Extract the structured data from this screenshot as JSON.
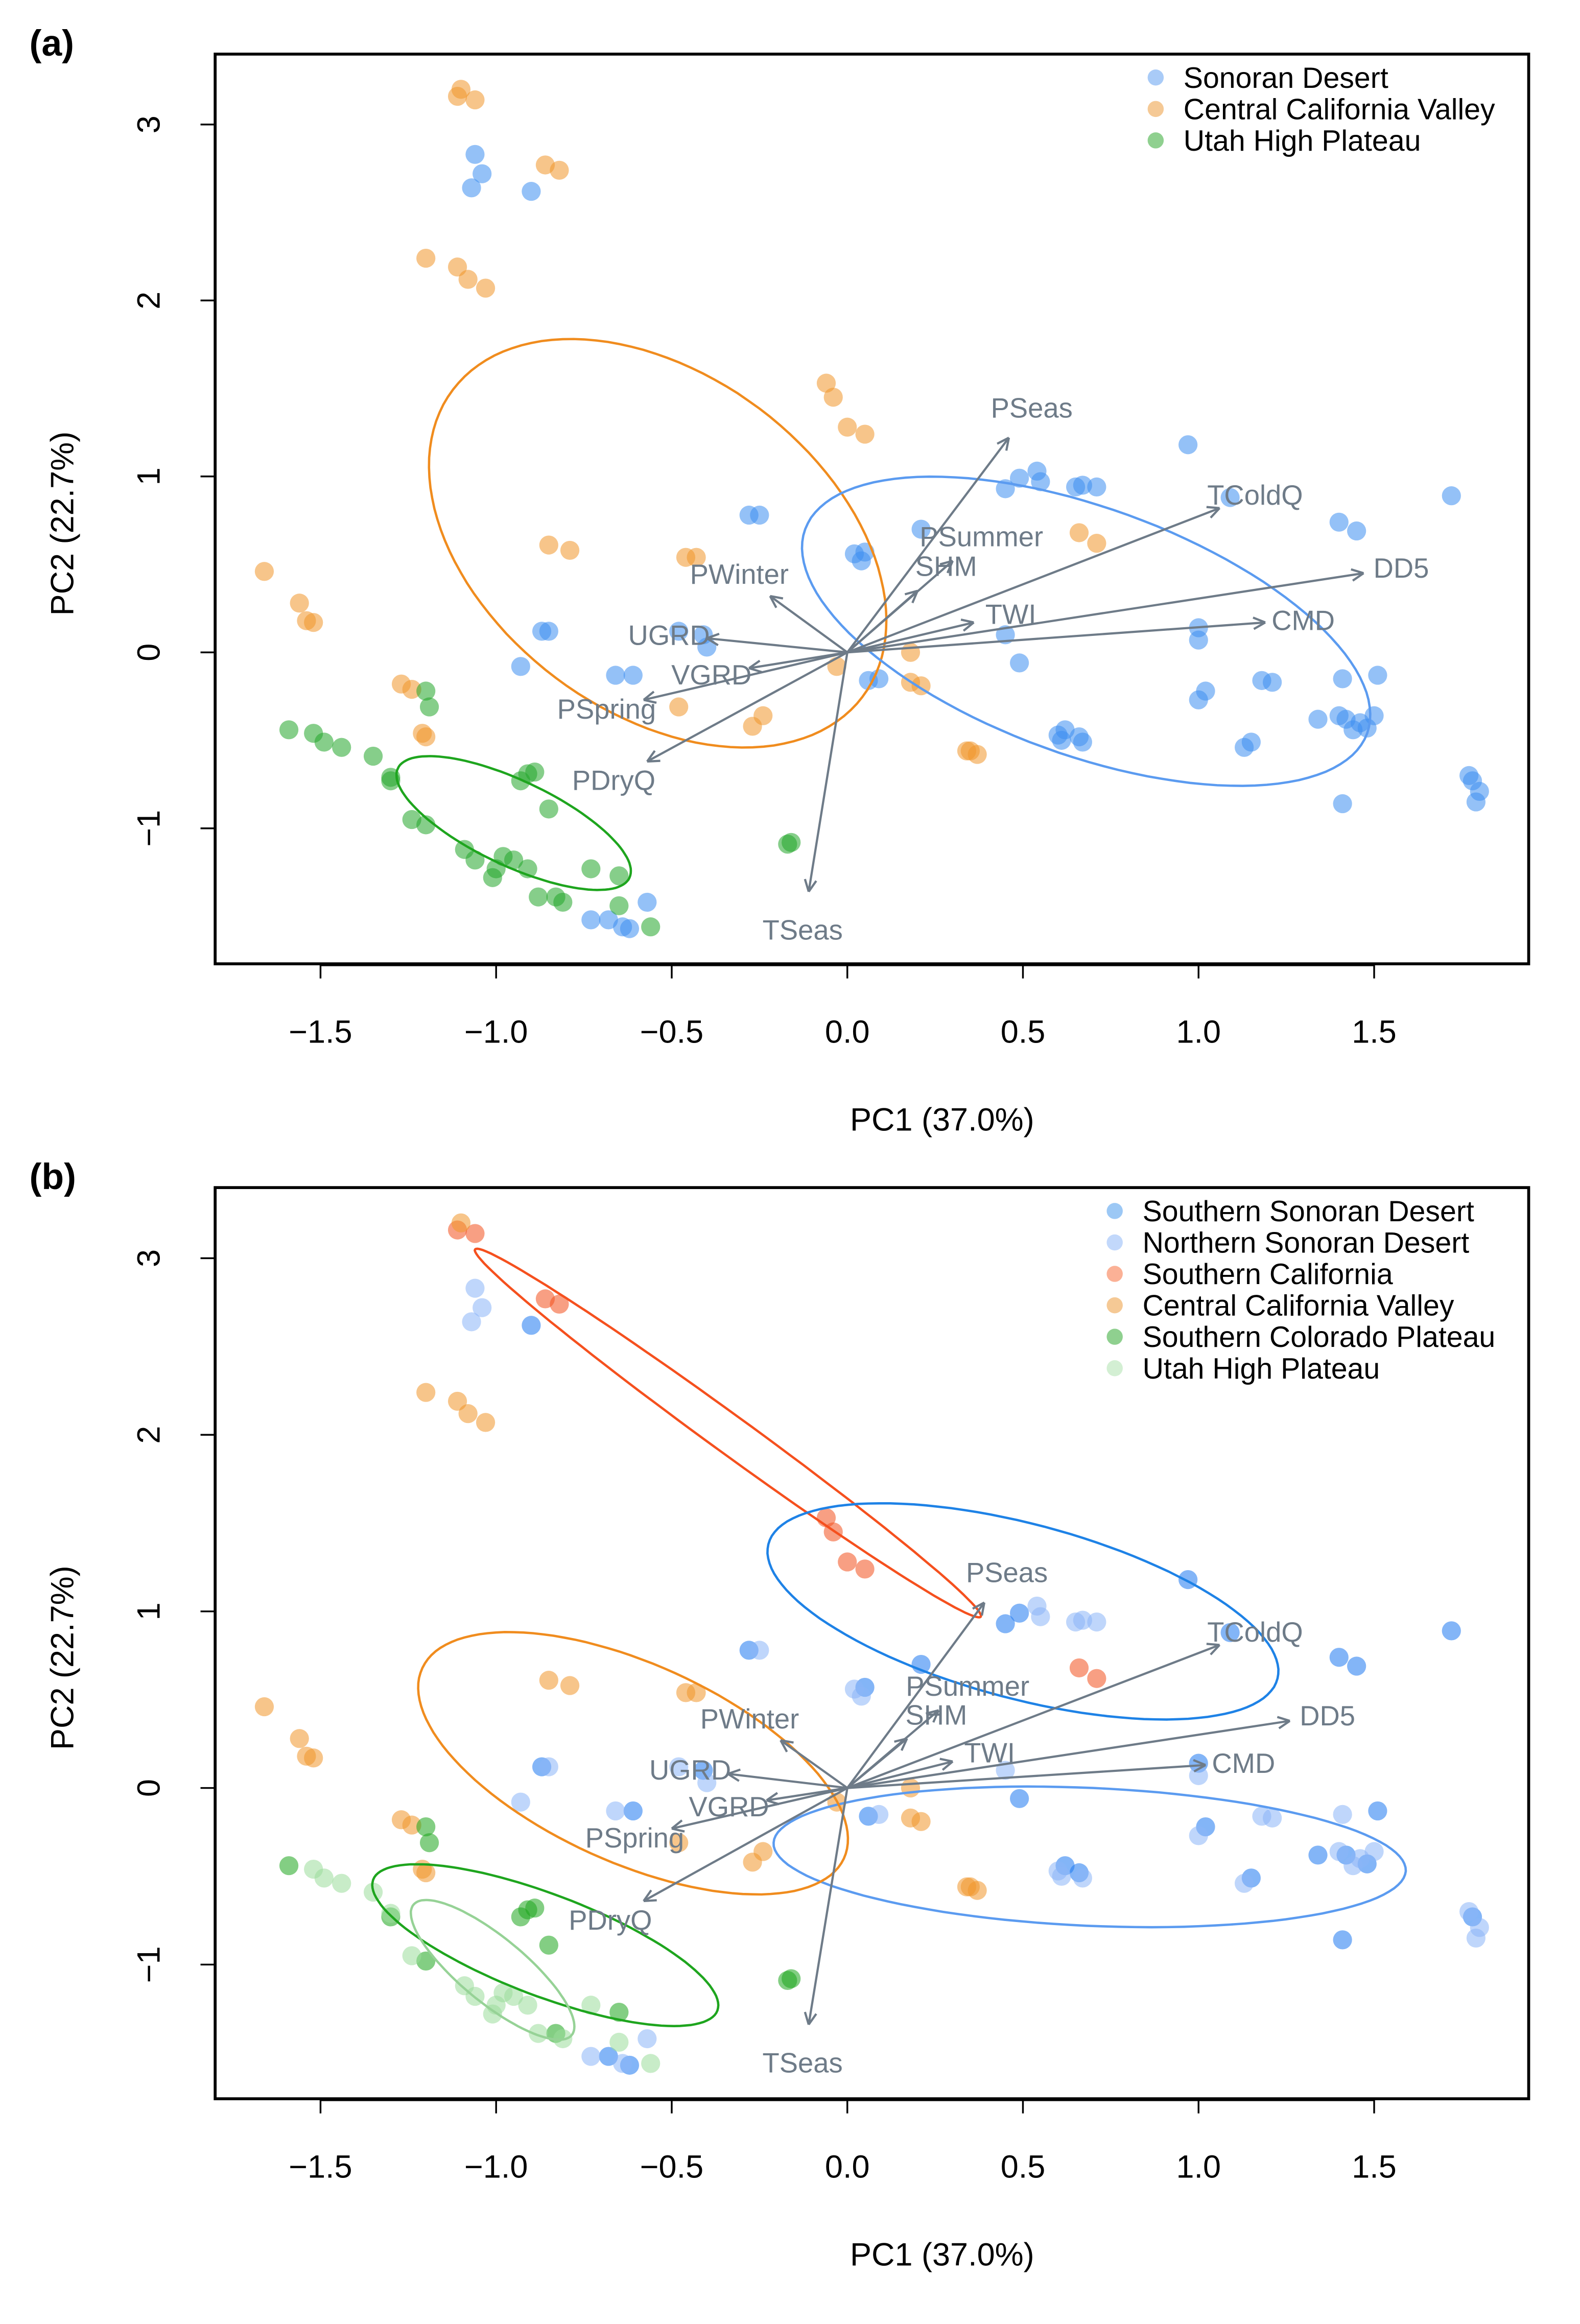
{
  "chart_data": [
    {
      "type": "scatter",
      "panel_label": "(a)",
      "xlabel": "PC1 (37.0%)",
      "ylabel": "PC2 (22.7%)",
      "xlim": [
        -1.8,
        1.94
      ],
      "ylim": [
        -1.77,
        3.4
      ],
      "xticks": [
        -1.5,
        -1.0,
        -0.5,
        0.0,
        0.5,
        1.0,
        1.5
      ],
      "xtick_labels": [
        "−1.5",
        "−1.0",
        "−0.5",
        "0.0",
        "0.5",
        "1.0",
        "1.5"
      ],
      "yticks": [
        -1,
        0,
        1,
        2,
        3
      ],
      "ytick_labels": [
        "−1",
        "0",
        "1",
        "2",
        "3"
      ],
      "legend_position": "top-right",
      "legend": [
        {
          "label": "Sonoran Desert",
          "color": "#a9cbf7"
        },
        {
          "label": "Central California Valley",
          "color": "#f5c995"
        },
        {
          "label": "Utah High Plateau",
          "color": "#8fd08f"
        }
      ],
      "point_group_map": [
        0,
        0,
        1,
        1,
        2,
        2
      ],
      "point_colors": [
        "#3d8ef0",
        "#f0962a",
        "#22a52a"
      ],
      "ellipses": [
        {
          "group": "Central California Valley",
          "color": "#f08c1e",
          "center": [
            -0.54,
            0.62
          ],
          "axis1": [
            0.583,
            -0.873
          ],
          "axis2": [
            -0.29,
            -0.765
          ]
        },
        {
          "group": "Sonoran Desert",
          "color": "#5b9bf0",
          "center": [
            0.68,
            0.12
          ],
          "axis1": [
            0.8,
            -0.58
          ],
          "axis2": [
            -0.12,
            -0.66
          ]
        },
        {
          "group": "Utah High Plateau",
          "color": "#1ea51e",
          "center": [
            -0.95,
            -0.97
          ],
          "axis1": [
            0.33,
            -0.31
          ],
          "axis2": [
            -0.05,
            -0.22
          ]
        }
      ],
      "loadings": [
        {
          "label": "PSeas",
          "x": 0.46,
          "y": 1.22
        },
        {
          "label": "TColdQ",
          "x": 1.06,
          "y": 0.82
        },
        {
          "label": "DD5",
          "x": 1.47,
          "y": 0.45
        },
        {
          "label": "CMD",
          "x": 1.19,
          "y": 0.17
        },
        {
          "label": "TWI",
          "x": 0.36,
          "y": 0.17
        },
        {
          "label": "PSummer",
          "x": 0.3,
          "y": 0.52
        },
        {
          "label": "SHM",
          "x": 0.2,
          "y": 0.35
        },
        {
          "label": "PWinter",
          "x": -0.22,
          "y": 0.32
        },
        {
          "label": "UGRD",
          "x": -0.4,
          "y": 0.08
        },
        {
          "label": "VGRD",
          "x": -0.28,
          "y": -0.09
        },
        {
          "label": "PSpring",
          "x": -0.58,
          "y": -0.27
        },
        {
          "label": "PDryQ",
          "x": -0.57,
          "y": -0.62
        },
        {
          "label": "TSeas",
          "x": -0.11,
          "y": -1.36
        }
      ]
    },
    {
      "type": "scatter",
      "panel_label": "(b)",
      "xlabel": "PC1 (37.0%)",
      "ylabel": "PC2 (22.7%)",
      "xlim": [
        -1.8,
        1.94
      ],
      "ylim": [
        -1.76,
        3.4
      ],
      "xticks": [
        -1.5,
        -1.0,
        -0.5,
        0.0,
        0.5,
        1.0,
        1.5
      ],
      "xtick_labels": [
        "−1.5",
        "−1.0",
        "−0.5",
        "0.0",
        "0.5",
        "1.0",
        "1.5"
      ],
      "yticks": [
        -1,
        0,
        1,
        2,
        3
      ],
      "ytick_labels": [
        "−1",
        "0",
        "1",
        "2",
        "3"
      ],
      "legend_position": "top-right",
      "legend": [
        {
          "label": "Southern Sonoran Desert",
          "color": "#9cc8f5"
        },
        {
          "label": "Northern Sonoran Desert",
          "color": "#c2d8fb"
        },
        {
          "label": "Southern California",
          "color": "#fbb196"
        },
        {
          "label": "Central California Valley",
          "color": "#f5c995"
        },
        {
          "label": "Southern Colorado Plateau",
          "color": "#8fd08f"
        },
        {
          "label": "Utah High Plateau",
          "color": "#d3efd3"
        }
      ],
      "point_group_map": [
        0,
        1,
        2,
        3,
        4,
        5
      ],
      "point_colors": [
        "#1e78f0",
        "#8ab4f8",
        "#f2501e",
        "#f0962a",
        "#1ea51e",
        "#9bdc9b"
      ],
      "ellipses": [
        {
          "group": "Southern California",
          "color": "#f5501e",
          "center": [
            -0.34,
            2.01
          ],
          "axis1": [
            0.72,
            -1.04
          ],
          "axis2": [
            -0.03,
            -0.09
          ]
        },
        {
          "group": "Southern Sonoran Desert",
          "color": "#1e82e6",
          "center": [
            0.5,
            1.0
          ],
          "axis1": [
            0.725,
            -0.38
          ],
          "axis2": [
            -0.06,
            -0.48
          ]
        },
        {
          "group": "Northern Sonoran Desert",
          "color": "#5b9bf0",
          "center": [
            0.69,
            -0.39
          ],
          "axis1": [
            0.9,
            -0.08
          ],
          "axis2": [
            -0.01,
            -0.39
          ]
        },
        {
          "group": "Central California Valley",
          "color": "#f08c1e",
          "center": [
            -0.61,
            0.14
          ],
          "axis1": [
            0.6,
            -0.54
          ],
          "axis2": [
            -0.12,
            -0.51
          ]
        },
        {
          "group": "Southern Colorado Plateau",
          "color": "#1ea51e",
          "center": [
            -0.86,
            -0.89
          ],
          "axis1": [
            0.49,
            -0.37
          ],
          "axis2": [
            -0.05,
            -0.27
          ]
        },
        {
          "group": "Utah High Plateau",
          "color": "#96d296",
          "center": [
            -1.01,
            -1.03
          ],
          "axis1": [
            0.225,
            -0.37
          ],
          "axis2": [
            -0.06,
            -0.14
          ]
        }
      ],
      "loadings": [
        {
          "label": "PSeas",
          "x": 0.39,
          "y": 1.05
        },
        {
          "label": "TColdQ",
          "x": 1.06,
          "y": 0.81
        },
        {
          "label": "DD5",
          "x": 1.26,
          "y": 0.38
        },
        {
          "label": "CMD",
          "x": 1.02,
          "y": 0.13
        },
        {
          "label": "TWI",
          "x": 0.3,
          "y": 0.15
        },
        {
          "label": "PSummer",
          "x": 0.26,
          "y": 0.44
        },
        {
          "label": "SHM",
          "x": 0.17,
          "y": 0.28
        },
        {
          "label": "PWinter",
          "x": -0.19,
          "y": 0.27
        },
        {
          "label": "UGRD",
          "x": -0.34,
          "y": 0.08
        },
        {
          "label": "VGRD",
          "x": -0.23,
          "y": -0.07
        },
        {
          "label": "PSpring",
          "x": -0.5,
          "y": -0.23
        },
        {
          "label": "PDryQ",
          "x": -0.58,
          "y": -0.64
        },
        {
          "label": "TSeas",
          "x": -0.11,
          "y": -1.34
        }
      ]
    }
  ],
  "points": {
    "groups": [
      "Southern Sonoran Desert",
      "Northern Sonoran Desert",
      "Southern California",
      "Central California Valley",
      "Southern Colorado Plateau",
      "Utah High Plateau"
    ],
    "values": [
      [
        [
          0.97,
          1.18
        ],
        [
          1.72,
          0.89
        ],
        [
          1.09,
          0.88
        ],
        [
          1.4,
          0.74
        ],
        [
          1.45,
          0.69
        ],
        [
          0.45,
          0.93
        ],
        [
          0.49,
          0.99
        ],
        [
          0.21,
          0.7
        ],
        [
          -0.28,
          0.78
        ],
        [
          0.05,
          0.57
        ],
        [
          0.49,
          -0.06
        ],
        [
          1.0,
          0.14
        ],
        [
          1.02,
          -0.22
        ],
        [
          1.15,
          -0.51
        ],
        [
          1.51,
          -0.13
        ],
        [
          1.34,
          -0.38
        ],
        [
          1.41,
          -0.86
        ],
        [
          1.78,
          -0.73
        ],
        [
          0.66,
          -0.48
        ],
        [
          -0.61,
          -0.13
        ],
        [
          -0.87,
          0.12
        ],
        [
          0.06,
          -0.16
        ],
        [
          -0.41,
          0.1
        ],
        [
          -0.62,
          -1.57
        ],
        [
          -0.68,
          -1.52
        ],
        [
          1.42,
          -0.38
        ],
        [
          1.48,
          -0.43
        ],
        [
          -0.9,
          2.62
        ],
        [
          0.62,
          -0.44
        ]
      ],
      [
        [
          -1.06,
          2.83
        ],
        [
          -1.04,
          2.72
        ],
        [
          -1.07,
          2.64
        ],
        [
          0.54,
          1.03
        ],
        [
          0.55,
          0.97
        ],
        [
          0.65,
          0.94
        ],
        [
          0.71,
          0.94
        ],
        [
          0.67,
          0.95
        ],
        [
          0.02,
          0.56
        ],
        [
          0.09,
          -0.15
        ],
        [
          0.45,
          0.1
        ],
        [
          1.0,
          0.07
        ],
        [
          1.0,
          -0.27
        ],
        [
          1.18,
          -0.16
        ],
        [
          1.21,
          -0.17
        ],
        [
          1.41,
          -0.15
        ],
        [
          1.4,
          -0.36
        ],
        [
          1.46,
          -0.4
        ],
        [
          1.5,
          -0.36
        ],
        [
          1.13,
          -0.54
        ],
        [
          0.6,
          -0.47
        ],
        [
          0.61,
          -0.5
        ],
        [
          0.67,
          -0.51
        ],
        [
          1.77,
          -0.7
        ],
        [
          1.8,
          -0.79
        ],
        [
          1.79,
          -0.85
        ],
        [
          -0.93,
          -0.08
        ],
        [
          -0.85,
          0.12
        ],
        [
          -0.66,
          -0.13
        ],
        [
          -0.48,
          0.12
        ],
        [
          -0.4,
          0.03
        ],
        [
          -0.57,
          -1.42
        ],
        [
          -0.73,
          -1.52
        ],
        [
          -0.64,
          -1.56
        ],
        [
          -0.25,
          0.78
        ],
        [
          0.04,
          0.52
        ],
        [
          1.44,
          -0.44
        ]
      ],
      [
        [
          -1.11,
          3.16
        ],
        [
          -1.06,
          3.14
        ],
        [
          -0.86,
          2.77
        ],
        [
          -0.82,
          2.74
        ],
        [
          -0.06,
          1.53
        ],
        [
          -0.04,
          1.45
        ],
        [
          0.0,
          1.28
        ],
        [
          0.05,
          1.24
        ],
        [
          0.66,
          0.68
        ],
        [
          0.71,
          0.62
        ]
      ],
      [
        [
          -1.2,
          2.24
        ],
        [
          -1.11,
          2.19
        ],
        [
          -1.08,
          2.12
        ],
        [
          -1.03,
          2.07
        ],
        [
          -1.66,
          0.46
        ],
        [
          -1.56,
          0.28
        ],
        [
          -1.54,
          0.18
        ],
        [
          -1.52,
          0.17
        ],
        [
          -0.85,
          0.61
        ],
        [
          -0.79,
          0.58
        ],
        [
          -0.46,
          0.54
        ],
        [
          -0.43,
          0.54
        ],
        [
          -0.48,
          -0.31
        ],
        [
          -0.27,
          -0.42
        ],
        [
          -0.24,
          -0.36
        ],
        [
          -1.27,
          -0.18
        ],
        [
          -1.24,
          -0.21
        ],
        [
          -1.2,
          -0.48
        ],
        [
          -1.21,
          -0.46
        ],
        [
          0.18,
          0.0
        ],
        [
          0.18,
          -0.17
        ],
        [
          0.21,
          -0.19
        ],
        [
          -0.03,
          -0.08
        ],
        [
          0.34,
          -0.56
        ],
        [
          0.37,
          -0.58
        ],
        [
          0.35,
          -0.56
        ],
        [
          -1.1,
          3.2
        ]
      ],
      [
        [
          -1.59,
          -0.44
        ],
        [
          -1.2,
          -0.22
        ],
        [
          -1.19,
          -0.31
        ],
        [
          -1.3,
          -0.73
        ],
        [
          -1.2,
          -0.98
        ],
        [
          -0.91,
          -0.69
        ],
        [
          -0.89,
          -0.68
        ],
        [
          -0.85,
          -0.89
        ],
        [
          -0.93,
          -0.73
        ],
        [
          -0.17,
          -1.09
        ],
        [
          -0.16,
          -1.08
        ],
        [
          -0.65,
          -1.27
        ],
        [
          -0.83,
          -1.39
        ]
      ],
      [
        [
          -1.52,
          -0.46
        ],
        [
          -1.49,
          -0.51
        ],
        [
          -1.44,
          -0.54
        ],
        [
          -1.35,
          -0.59
        ],
        [
          -1.3,
          -0.71
        ],
        [
          -1.24,
          -0.95
        ],
        [
          -1.09,
          -1.12
        ],
        [
          -1.06,
          -1.18
        ],
        [
          -1.01,
          -1.28
        ],
        [
          -0.98,
          -1.16
        ],
        [
          -0.95,
          -1.18
        ],
        [
          -0.91,
          -1.23
        ],
        [
          -0.88,
          -1.39
        ],
        [
          -0.81,
          -1.42
        ],
        [
          -0.73,
          -1.23
        ],
        [
          -0.65,
          -1.44
        ],
        [
          -0.56,
          -1.56
        ],
        [
          -1.0,
          -1.23
        ]
      ]
    ]
  }
}
